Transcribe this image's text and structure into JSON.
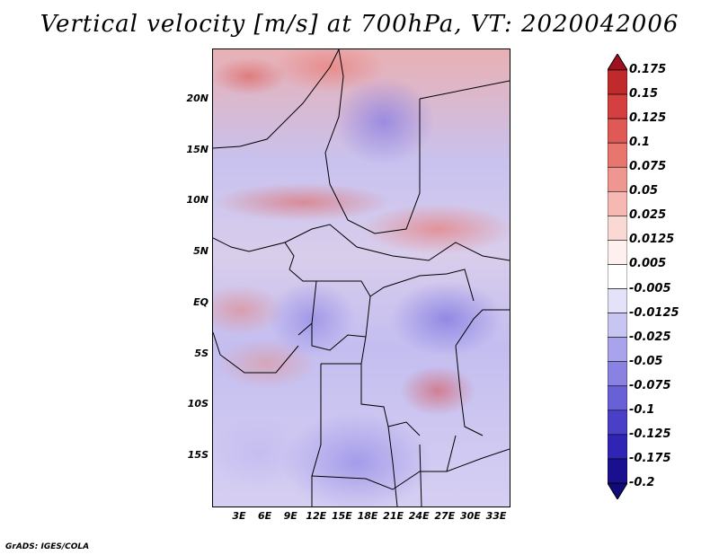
{
  "title": "Vertical velocity [m/s] at 700hPa, VT: 2020042006",
  "credit": "GrADS: IGES/COLA",
  "map": {
    "lat_labels": [
      "20N",
      "15N",
      "10N",
      "5N",
      "EQ",
      "5S",
      "10S",
      "15S"
    ],
    "lon_labels": [
      "3E",
      "6E",
      "9E",
      "12E",
      "15E",
      "18E",
      "21E",
      "24E",
      "27E",
      "30E",
      "33E"
    ],
    "lat_range": [
      -19.5,
      24.5
    ],
    "lon_range": [
      0,
      35
    ],
    "field": "vertical velocity"
  },
  "colorbar": {
    "labels": [
      "0.175",
      "0.15",
      "0.125",
      "0.1",
      "0.075",
      "0.05",
      "0.025",
      "0.0125",
      "0.005",
      "-0.005",
      "-0.0125",
      "-0.025",
      "-0.05",
      "-0.075",
      "-0.1",
      "-0.125",
      "-0.175",
      "-0.2"
    ],
    "colors": [
      "#a01020",
      "#c02a2a",
      "#d44040",
      "#df5a55",
      "#e8766e",
      "#ef9690",
      "#f5b8b2",
      "#fad8d4",
      "#fdf0ee",
      "#ffffff",
      "#e4e2f8",
      "#c9c5f2",
      "#a9a3eb",
      "#8a82e2",
      "#6a60d6",
      "#4a40c8",
      "#2f24b4",
      "#1a108f",
      "#120a7a"
    ]
  }
}
